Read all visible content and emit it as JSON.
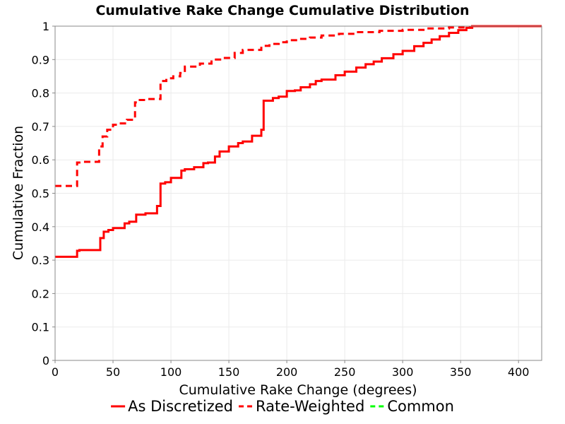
{
  "chart_data": {
    "type": "line",
    "title": "Cumulative Rake Change Cumulative Distribution",
    "xlabel": "Cumulative Rake Change (degrees)",
    "ylabel": "Cumulative Fraction",
    "xlim": [
      0,
      420
    ],
    "ylim": [
      0,
      1
    ],
    "x_ticks": [
      0,
      50,
      100,
      150,
      200,
      250,
      300,
      350,
      400
    ],
    "y_ticks": [
      0,
      0.1,
      0.2,
      0.3,
      0.4,
      0.5,
      0.6,
      0.7,
      0.8,
      0.9,
      1
    ],
    "x_tick_labels": [
      "0",
      "50",
      "100",
      "150",
      "200",
      "250",
      "300",
      "350",
      "400"
    ],
    "y_tick_labels": [
      "0",
      "0.1",
      "0.2",
      "0.3",
      "0.4",
      "0.5",
      "0.6",
      "0.7",
      "0.8",
      "0.9",
      "1"
    ],
    "grid": true,
    "legend_position": "bottom",
    "series": [
      {
        "name": "As Discretized",
        "color": "#ff0000",
        "dash": "solid",
        "step": true,
        "x": [
          0,
          19,
          21,
          39,
          42,
          46,
          50,
          60,
          64,
          70,
          78,
          88,
          91,
          95,
          100,
          109,
          112,
          120,
          128,
          132,
          138,
          142,
          150,
          158,
          162,
          170,
          178,
          180,
          188,
          193,
          200,
          207,
          212,
          220,
          225,
          230,
          242,
          250,
          260,
          268,
          275,
          282,
          292,
          300,
          310,
          318,
          325,
          332,
          340,
          348,
          355,
          360,
          420
        ],
        "y": [
          0.31,
          0.328,
          0.33,
          0.366,
          0.385,
          0.39,
          0.396,
          0.41,
          0.415,
          0.436,
          0.44,
          0.462,
          0.529,
          0.533,
          0.546,
          0.568,
          0.572,
          0.578,
          0.59,
          0.592,
          0.61,
          0.625,
          0.64,
          0.65,
          0.655,
          0.672,
          0.69,
          0.777,
          0.785,
          0.789,
          0.806,
          0.808,
          0.817,
          0.826,
          0.836,
          0.84,
          0.853,
          0.864,
          0.876,
          0.886,
          0.894,
          0.904,
          0.916,
          0.926,
          0.94,
          0.95,
          0.96,
          0.97,
          0.98,
          0.988,
          0.995,
          1.0,
          1.0
        ]
      },
      {
        "name": "Rate-Weighted",
        "color": "#ff0000",
        "dash": "dashed",
        "step": true,
        "x": [
          0,
          19,
          23,
          38,
          41,
          45,
          50,
          55,
          62,
          69,
          72,
          80,
          91,
          96,
          102,
          108,
          112,
          125,
          135,
          145,
          155,
          162,
          178,
          185,
          193,
          200,
          210,
          220,
          230,
          245,
          260,
          280,
          300,
          320,
          340,
          360,
          420
        ],
        "y": [
          0.522,
          0.592,
          0.594,
          0.64,
          0.67,
          0.69,
          0.705,
          0.709,
          0.72,
          0.772,
          0.779,
          0.782,
          0.836,
          0.844,
          0.85,
          0.86,
          0.879,
          0.888,
          0.9,
          0.905,
          0.92,
          0.929,
          0.941,
          0.947,
          0.952,
          0.958,
          0.962,
          0.966,
          0.972,
          0.977,
          0.982,
          0.986,
          0.989,
          0.993,
          0.996,
          1.0,
          1.0
        ]
      },
      {
        "name": "Common",
        "color": "#00ff00",
        "dash": "dashed",
        "step": true,
        "x": [],
        "y": []
      }
    ]
  }
}
